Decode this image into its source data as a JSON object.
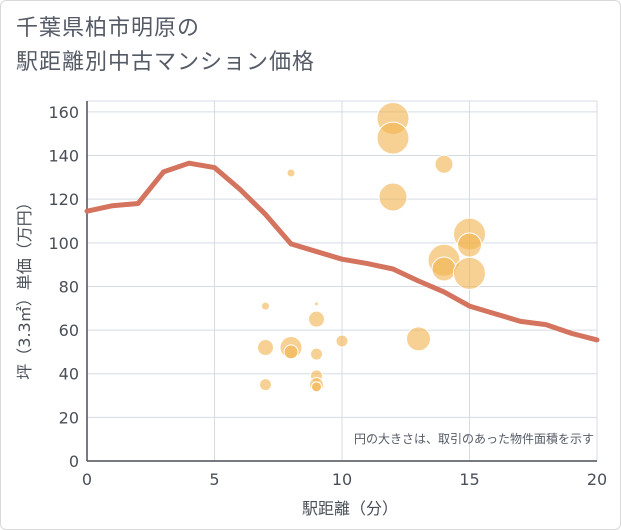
{
  "title": {
    "line1": "千葉県柏市明原の",
    "line2": "駅距離別中古マンション価格"
  },
  "chart_data": {
    "type": "scatter",
    "title": "千葉県柏市明原の駅距離別中古マンション価格",
    "xlabel": "駅距離（分）",
    "ylabel": "坪（3.3㎡）単価（万円）",
    "xlim": [
      0,
      20
    ],
    "ylim": [
      0,
      165
    ],
    "xticks": [
      0,
      5,
      10,
      15,
      20
    ],
    "yticks": [
      0,
      20,
      40,
      60,
      80,
      100,
      120,
      140,
      160
    ],
    "grid": true,
    "note": "円の大きさは、取引のあった物件面積を示す",
    "colors": {
      "line": "#d4735e",
      "bubble": "#f2b24c",
      "grid": "#d5dbe3",
      "axis": "#4a4f57"
    },
    "trend_line": {
      "x": [
        0,
        1,
        2,
        3,
        4,
        5,
        6,
        7,
        8,
        9,
        10,
        11,
        12,
        13,
        14,
        15,
        16,
        17,
        18,
        19,
        20
      ],
      "y": [
        114.5,
        117,
        118,
        132.5,
        136.5,
        134.5,
        124.5,
        113,
        99.5,
        96,
        92.5,
        90.5,
        88,
        82.5,
        77.5,
        71,
        67.5,
        64,
        62.5,
        58.5,
        55.5
      ]
    },
    "bubbles": [
      {
        "x": 8,
        "y": 132,
        "r": 4
      },
      {
        "x": 7,
        "y": 71,
        "r": 4
      },
      {
        "x": 9,
        "y": 72,
        "r": 2
      },
      {
        "x": 9,
        "y": 65,
        "r": 8
      },
      {
        "x": 7,
        "y": 52,
        "r": 8
      },
      {
        "x": 8,
        "y": 52,
        "r": 11
      },
      {
        "x": 8,
        "y": 50,
        "r": 7
      },
      {
        "x": 9,
        "y": 49,
        "r": 6
      },
      {
        "x": 10,
        "y": 55,
        "r": 6
      },
      {
        "x": 9,
        "y": 39,
        "r": 6
      },
      {
        "x": 7,
        "y": 35,
        "r": 6
      },
      {
        "x": 9,
        "y": 35,
        "r": 7
      },
      {
        "x": 9,
        "y": 34,
        "r": 5
      },
      {
        "x": 12,
        "y": 157,
        "r": 16
      },
      {
        "x": 12,
        "y": 148,
        "r": 16
      },
      {
        "x": 12,
        "y": 121,
        "r": 14
      },
      {
        "x": 14,
        "y": 136,
        "r": 9
      },
      {
        "x": 13,
        "y": 56,
        "r": 12
      },
      {
        "x": 14,
        "y": 92,
        "r": 16
      },
      {
        "x": 14,
        "y": 88,
        "r": 12
      },
      {
        "x": 15,
        "y": 104,
        "r": 16
      },
      {
        "x": 15,
        "y": 99,
        "r": 12
      },
      {
        "x": 15,
        "y": 86,
        "r": 16
      }
    ]
  }
}
